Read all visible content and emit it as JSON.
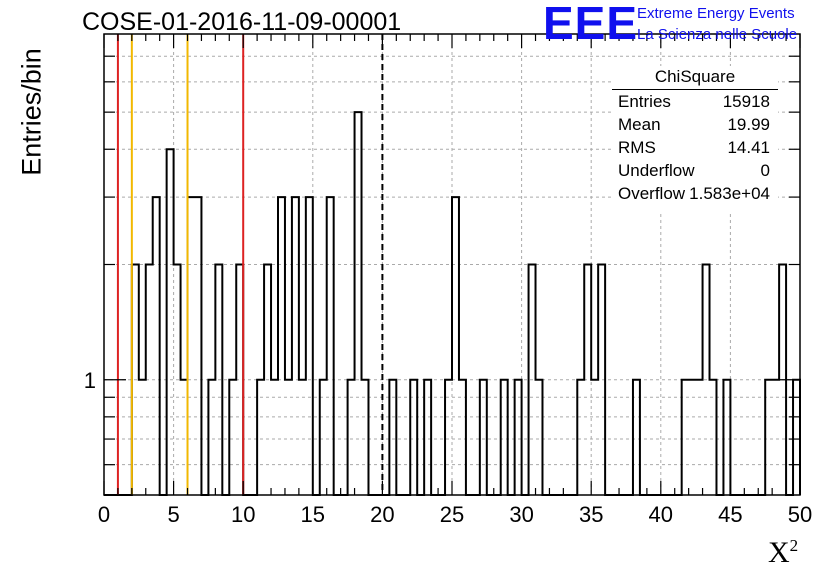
{
  "title": "COSE-01-2016-11-09-00001",
  "logo": {
    "mark": "EEE",
    "line1": "Extreme Energy Events",
    "line2": "La Scienza nelle Scuole"
  },
  "stats_box": {
    "title": "ChiSquare",
    "rows": [
      {
        "label": "Entries",
        "value": "15918"
      },
      {
        "label": "Mean",
        "value": "19.99"
      },
      {
        "label": "RMS",
        "value": "14.41"
      },
      {
        "label": "Underflow",
        "value": "0"
      },
      {
        "label": "Overflow",
        "value": "1.583e+04"
      }
    ]
  },
  "chart_data": {
    "type": "histogram",
    "title": "COSE-01-2016-11-09-00001",
    "xlabel": "X",
    "xlabel_superscript": "2",
    "ylabel": "Entries/bin",
    "xlim": [
      0,
      50
    ],
    "ylim": [
      0.5,
      8
    ],
    "y_scale": "log",
    "grid": true,
    "x_ticks": [
      "0",
      "5",
      "10",
      "15",
      "20",
      "25",
      "30",
      "35",
      "40",
      "45",
      "50"
    ],
    "y_tick_labels": [
      {
        "value": 1,
        "label": "1"
      }
    ],
    "bin_width": 0.5,
    "bin_starts": [
      2.0,
      2.5,
      3.0,
      3.5,
      4.5,
      5.0,
      5.5,
      6.0,
      6.5,
      7.5,
      8.0,
      9.0,
      9.5,
      11.0,
      11.5,
      12.0,
      12.5,
      13.0,
      13.5,
      14.0,
      14.5,
      15.5,
      16.0,
      17.5,
      18.0,
      18.5,
      20.5,
      22.0,
      23.0,
      24.5,
      25.0,
      25.5,
      27.0,
      28.5,
      29.5,
      30.5,
      31.0,
      34.0,
      34.5,
      35.0,
      35.5,
      38.0,
      41.5,
      42.0,
      42.5,
      43.0,
      43.5,
      44.5,
      47.5,
      48.0,
      48.5,
      49.5
    ],
    "counts": [
      2,
      1,
      2,
      3,
      4,
      2,
      1,
      3,
      3,
      1,
      2,
      1,
      2,
      1,
      2,
      1,
      3,
      1,
      3,
      1,
      3,
      1,
      3,
      1,
      5,
      1,
      1,
      1,
      1,
      1,
      3,
      1,
      1,
      1,
      1,
      2,
      1,
      1,
      2,
      1,
      2,
      1,
      1,
      1,
      1,
      2,
      1,
      1,
      1,
      1,
      2,
      1
    ],
    "vertical_lines": [
      {
        "x": 1,
        "color": "#dd2222",
        "style": "solid"
      },
      {
        "x": 2,
        "color": "#f2b800",
        "style": "solid"
      },
      {
        "x": 6,
        "color": "#f2b800",
        "style": "solid"
      },
      {
        "x": 10,
        "color": "#dd2222",
        "style": "solid"
      },
      {
        "x": 20,
        "color": "#000000",
        "style": "dashed"
      }
    ]
  }
}
